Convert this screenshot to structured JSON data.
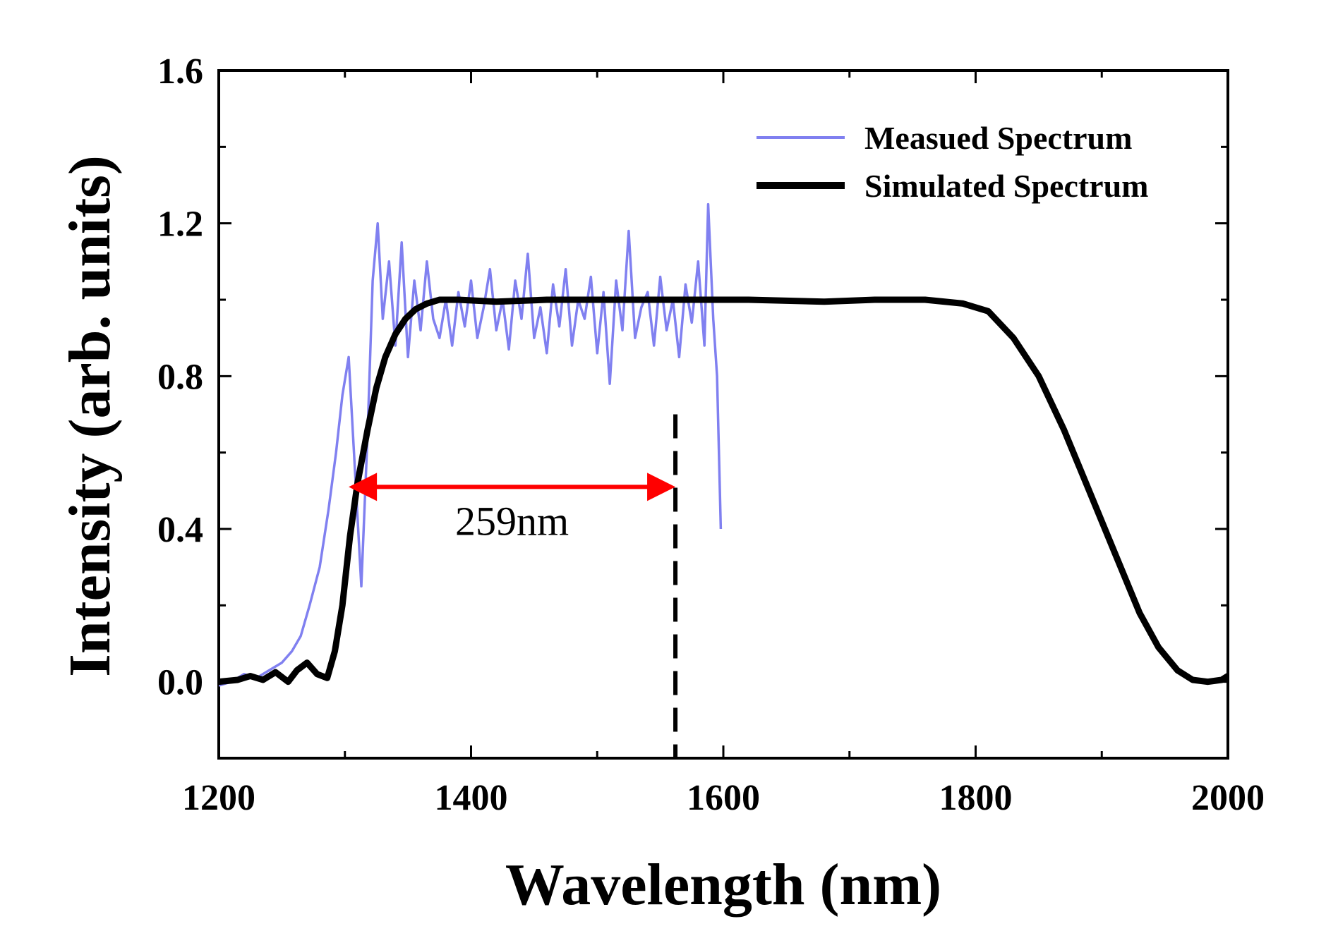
{
  "chart_data": {
    "type": "line",
    "title": "",
    "xlabel": "Wavelength (nm)",
    "ylabel": "Intensity (arb. units)",
    "xlim": [
      1200,
      2000
    ],
    "ylim": [
      -0.2,
      1.6
    ],
    "xticks": [
      1200,
      1400,
      1600,
      1800,
      2000
    ],
    "xtick_labels": [
      "1200",
      "1400",
      "1600",
      "1800",
      "2000"
    ],
    "yticks": [
      0.0,
      0.4,
      0.8,
      1.2,
      1.6
    ],
    "ytick_labels": [
      "0.0",
      "0.4",
      "0.8",
      "1.2",
      "1.6"
    ],
    "grid": false,
    "legend_position": "top-right",
    "series": [
      {
        "name": "Measued Spectrum",
        "color": "#8080f0",
        "x": [
          1200,
          1210,
          1220,
          1230,
          1240,
          1250,
          1258,
          1265,
          1272,
          1280,
          1287,
          1293,
          1298,
          1303,
          1308,
          1313,
          1318,
          1322,
          1326,
          1330,
          1335,
          1340,
          1345,
          1350,
          1355,
          1360,
          1365,
          1370,
          1375,
          1380,
          1385,
          1390,
          1395,
          1400,
          1405,
          1410,
          1415,
          1420,
          1425,
          1430,
          1435,
          1440,
          1445,
          1450,
          1455,
          1460,
          1465,
          1470,
          1475,
          1480,
          1485,
          1490,
          1495,
          1500,
          1505,
          1510,
          1515,
          1520,
          1525,
          1530,
          1535,
          1540,
          1545,
          1550,
          1555,
          1560,
          1565,
          1570,
          1575,
          1580,
          1585,
          1588,
          1592,
          1595,
          1598
        ],
        "values": [
          -0.01,
          0.0,
          0.02,
          0.01,
          0.03,
          0.05,
          0.08,
          0.12,
          0.2,
          0.3,
          0.45,
          0.6,
          0.75,
          0.85,
          0.55,
          0.25,
          0.65,
          1.05,
          1.2,
          0.95,
          1.1,
          0.88,
          1.15,
          0.85,
          1.05,
          0.92,
          1.1,
          0.95,
          0.9,
          1.0,
          0.88,
          1.02,
          0.93,
          1.05,
          0.9,
          0.98,
          1.08,
          0.92,
          1.0,
          0.87,
          1.05,
          0.95,
          1.12,
          0.9,
          0.98,
          0.86,
          1.04,
          0.93,
          1.08,
          0.88,
          1.0,
          0.95,
          1.06,
          0.86,
          1.02,
          0.78,
          1.05,
          0.92,
          1.18,
          0.9,
          0.98,
          1.02,
          0.88,
          1.06,
          0.92,
          1.0,
          0.85,
          1.04,
          0.94,
          1.1,
          0.88,
          1.25,
          0.95,
          0.8,
          0.4
        ]
      },
      {
        "name": "Simulated Spectrum",
        "color": "#000000",
        "x": [
          1200,
          1215,
          1225,
          1235,
          1245,
          1255,
          1262,
          1270,
          1278,
          1286,
          1292,
          1298,
          1304,
          1310,
          1318,
          1325,
          1332,
          1340,
          1348,
          1356,
          1365,
          1375,
          1390,
          1420,
          1460,
          1500,
          1560,
          1620,
          1680,
          1720,
          1760,
          1790,
          1810,
          1830,
          1850,
          1870,
          1890,
          1910,
          1930,
          1945,
          1960,
          1972,
          1984,
          1995,
          2000
        ],
        "values": [
          0.0,
          0.005,
          0.015,
          0.005,
          0.025,
          0.0,
          0.03,
          0.05,
          0.02,
          0.01,
          0.08,
          0.2,
          0.38,
          0.52,
          0.66,
          0.77,
          0.85,
          0.91,
          0.95,
          0.975,
          0.99,
          1.0,
          1.0,
          0.995,
          1.0,
          1.0,
          1.0,
          1.0,
          0.995,
          1.0,
          1.0,
          0.99,
          0.97,
          0.9,
          0.8,
          0.66,
          0.5,
          0.34,
          0.18,
          0.09,
          0.03,
          0.005,
          0.0,
          0.005,
          0.015
        ]
      }
    ],
    "annotations": [
      {
        "type": "double-arrow",
        "x_start": 1303,
        "x_end": 1562,
        "y": 0.51,
        "color": "#ff0000",
        "label": "259nm"
      },
      {
        "type": "vline-dashed",
        "x": 1562,
        "y_start": -0.2,
        "y_end": 0.7,
        "color": "#000000"
      }
    ]
  }
}
